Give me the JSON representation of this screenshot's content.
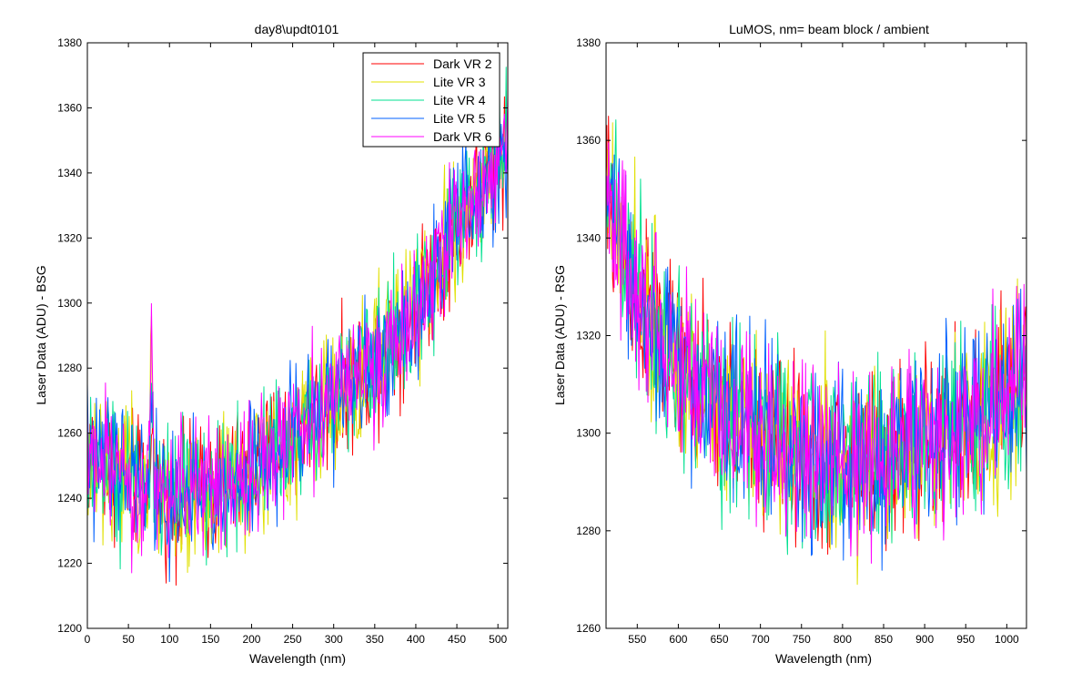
{
  "figure": {
    "background": "#ffffff"
  },
  "chart_data": [
    {
      "type": "line",
      "title": "day8\\updt0101",
      "xlabel": "Wavelength (nm)",
      "ylabel": "Laser Data (ADU) - BSG",
      "xlim": [
        0,
        512
      ],
      "ylim": [
        1200,
        1380
      ],
      "xticks": [
        0,
        50,
        100,
        150,
        200,
        250,
        300,
        350,
        400,
        450,
        500
      ],
      "yticks": [
        1200,
        1220,
        1240,
        1260,
        1280,
        1300,
        1320,
        1340,
        1360,
        1380
      ],
      "grid": false,
      "legend": "top-right",
      "noise_amplitude": 10,
      "trend": {
        "x": [
          0,
          40,
          100,
          150,
          200,
          250,
          300,
          350,
          400,
          450,
          490,
          512
        ],
        "y": [
          1254,
          1247,
          1240,
          1242,
          1248,
          1260,
          1270,
          1282,
          1298,
          1325,
          1340,
          1352
        ]
      },
      "spikes": [
        {
          "x": 78,
          "y": 1306
        }
      ],
      "series": [
        {
          "name": "Dark VR 2",
          "color": "#ff0000"
        },
        {
          "name": "Lite VR 3",
          "color": "#e0e000"
        },
        {
          "name": "Lite VR 4",
          "color": "#00e090"
        },
        {
          "name": "Lite VR 5",
          "color": "#0060ff"
        },
        {
          "name": "Dark VR 6",
          "color": "#ff00ff"
        }
      ]
    },
    {
      "type": "line",
      "title": "LuMOS, nm= beam block / ambient",
      "xlabel": "Wavelength (nm)",
      "ylabel": "Laser Data (ADU) - RSG",
      "xlim": [
        512,
        1024
      ],
      "ylim": [
        1260,
        1380
      ],
      "xticks": [
        550,
        600,
        650,
        700,
        750,
        800,
        850,
        900,
        950,
        1000
      ],
      "yticks": [
        1260,
        1280,
        1300,
        1320,
        1340,
        1360,
        1380
      ],
      "grid": false,
      "noise_amplitude": 9,
      "trend": {
        "x": [
          512,
          530,
          560,
          600,
          650,
          700,
          750,
          800,
          850,
          900,
          950,
          1000,
          1024
        ],
        "y": [
          1350,
          1338,
          1325,
          1313,
          1305,
          1300,
          1296,
          1294,
          1295,
          1298,
          1302,
          1308,
          1316
        ]
      },
      "series": [
        {
          "name": "Dark VR 2",
          "color": "#ff0000"
        },
        {
          "name": "Lite VR 3",
          "color": "#e0e000"
        },
        {
          "name": "Lite VR 4",
          "color": "#00e090"
        },
        {
          "name": "Lite VR 5",
          "color": "#0060ff"
        },
        {
          "name": "Dark VR 6",
          "color": "#ff00ff"
        }
      ]
    }
  ]
}
